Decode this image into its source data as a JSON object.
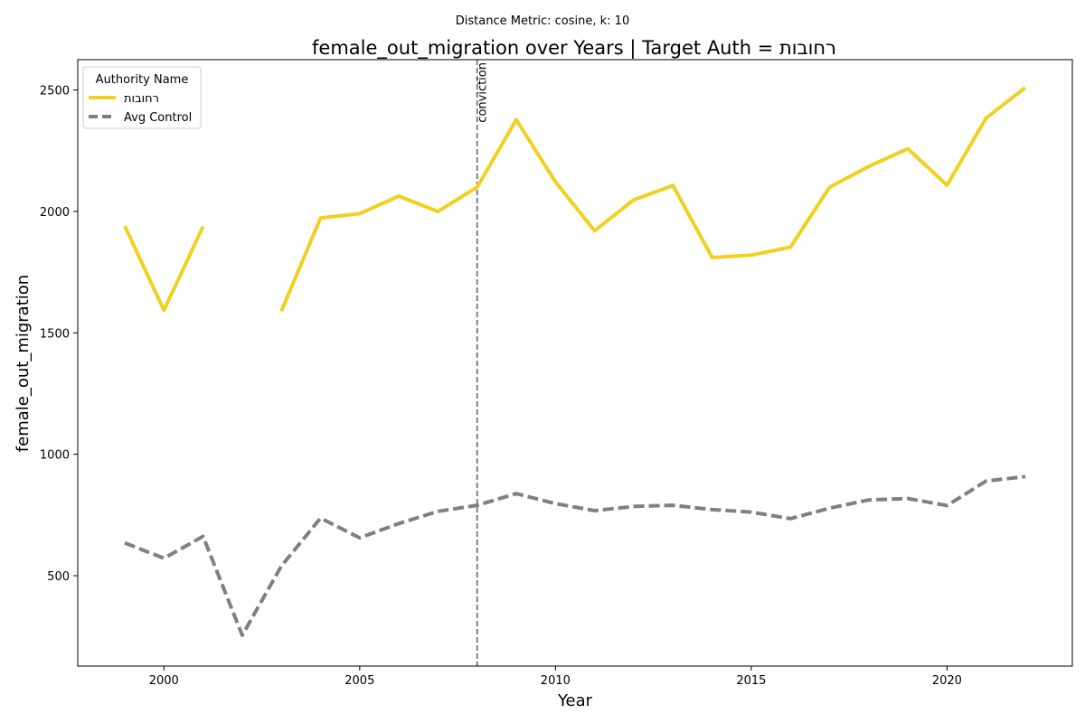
{
  "suptitle": "Distance Metric: cosine, k: 10",
  "colors": {
    "target": "#f0d020",
    "control": "#808080",
    "marker": "#808080"
  },
  "chart_data": {
    "type": "line",
    "title": "female_out_migration over Years | Target Auth = רחובות",
    "xlabel": "Year",
    "ylabel": "female_out_migration",
    "xlim": [
      1997.8,
      2023.2
    ],
    "ylim": [
      128,
      2625
    ],
    "xticks": [
      2000,
      2005,
      2010,
      2015,
      2020
    ],
    "yticks": [
      500,
      1000,
      1500,
      2000,
      2500
    ],
    "x": [
      1999,
      2000,
      2001,
      2002,
      2003,
      2004,
      2005,
      2006,
      2007,
      2008,
      2009,
      2010,
      2011,
      2012,
      2013,
      2014,
      2015,
      2016,
      2017,
      2018,
      2019,
      2020,
      2021,
      2022
    ],
    "series": [
      {
        "name": "רחובות",
        "style": "solid",
        "values": [
          1940,
          1593,
          1938,
          null,
          1589,
          1973,
          1991,
          2063,
          2000,
          2100,
          2378,
          2122,
          1920,
          2048,
          2107,
          1810,
          1820,
          1853,
          2100,
          2185,
          2258,
          2108,
          2385,
          2510
        ]
      },
      {
        "name": "Avg Control",
        "style": "dashed",
        "values": [
          635,
          572,
          662,
          255,
          540,
          737,
          656,
          715,
          765,
          790,
          838,
          797,
          768,
          785,
          790,
          772,
          762,
          735,
          778,
          812,
          818,
          789,
          890,
          908
        ]
      }
    ],
    "annotation": {
      "x": 2008,
      "label": "conviction"
    },
    "legend": {
      "title": "Authority Name",
      "position": "upper left"
    },
    "grid": false
  }
}
